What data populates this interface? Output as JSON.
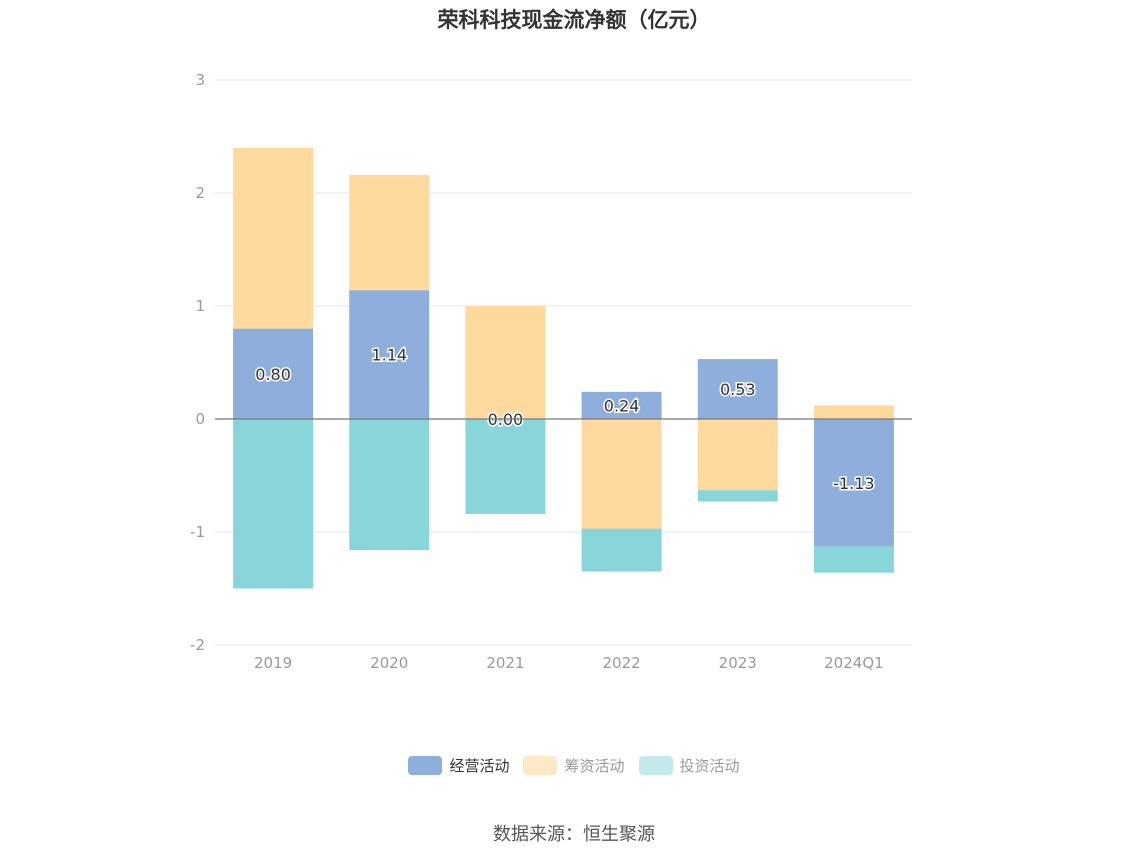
{
  "title": "荣科科技现金流净额（亿元）",
  "source": "数据来源：恒生聚源",
  "colors": {
    "operating": "#8eaedb",
    "financing": "#ffd99d",
    "investing": "#88d5da",
    "operating_legend": "#8eaedb",
    "financing_legend": "#ffe9c6",
    "investing_legend": "#c3e9ec",
    "grid": "#e3e6ee",
    "zero_line": "#777777"
  },
  "legend": [
    {
      "label": "经营活动",
      "active": true
    },
    {
      "label": "筹资活动",
      "active": false
    },
    {
      "label": "投资活动",
      "active": false
    }
  ],
  "chart_data": {
    "type": "bar",
    "stacked": true,
    "categories": [
      "2019",
      "2020",
      "2021",
      "2022",
      "2023",
      "2024Q1"
    ],
    "series": [
      {
        "name": "经营活动",
        "values": [
          0.8,
          1.14,
          0.0,
          0.24,
          0.53,
          -1.13
        ]
      },
      {
        "name": "筹资活动",
        "values": [
          1.6,
          1.02,
          1.0,
          -0.97,
          -0.63,
          0.12
        ]
      },
      {
        "name": "投资活动",
        "values": [
          -1.5,
          -1.16,
          -0.84,
          -0.38,
          -0.1,
          -0.23
        ]
      }
    ],
    "data_labels": [
      "0.80",
      "1.14",
      "0.00",
      "0.24",
      "0.53",
      "-1.13"
    ],
    "ylim": [
      -2,
      3
    ],
    "yticks": [
      "3",
      "2",
      "1",
      "0",
      "-1",
      "-2"
    ],
    "grid": true,
    "legend_position": "bottom"
  }
}
